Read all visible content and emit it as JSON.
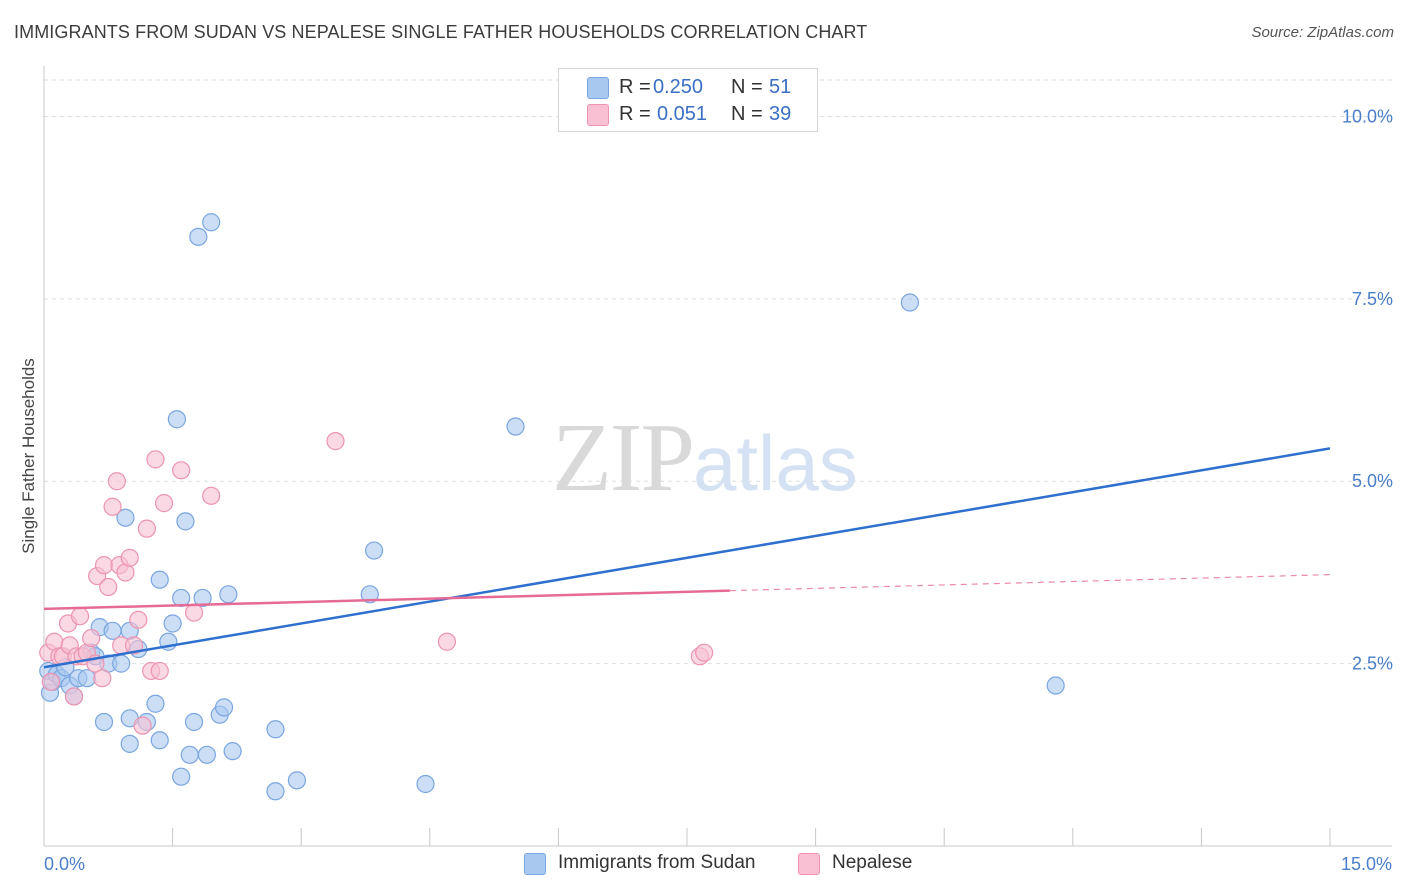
{
  "title": "IMMIGRANTS FROM SUDAN VS NEPALESE SINGLE FATHER HOUSEHOLDS CORRELATION CHART",
  "source": "Source: ZipAtlas.com",
  "watermark": {
    "zip": "ZIP",
    "atlas": "atlas"
  },
  "legend": {
    "rows": [
      {
        "r_label": "R =",
        "r_value": "0.250",
        "n_label": "N =",
        "n_value": "51",
        "color": "#a9c8f0",
        "border": "#7aa6e0"
      },
      {
        "r_label": "R =",
        "r_value": "0.051",
        "n_label": "N =",
        "n_value": "39",
        "color": "#f8c0d2",
        "border": "#ec94b0"
      }
    ]
  },
  "bottom_legend": [
    {
      "label": "Immigrants from Sudan",
      "color": "#a9c8f0",
      "border": "#7aa6e0"
    },
    {
      "label": "Nepalese",
      "color": "#f8c0d2",
      "border": "#ec94b0"
    }
  ],
  "chart_data": {
    "type": "scatter",
    "title": "IMMIGRANTS FROM SUDAN VS NEPALESE SINGLE FATHER HOUSEHOLDS CORRELATION CHART",
    "xlabel": "",
    "ylabel": "Single Father Households",
    "xlim": [
      0,
      15
    ],
    "ylim": [
      0,
      10.5
    ],
    "x_tick_labels": [
      {
        "value": 0,
        "label": "0.0%"
      },
      {
        "value": 15,
        "label": "15.0%"
      }
    ],
    "y_tick_labels": [
      {
        "value": 2.5,
        "label": "2.5%"
      },
      {
        "value": 5.0,
        "label": "5.0%"
      },
      {
        "value": 7.5,
        "label": "7.5%"
      },
      {
        "value": 10.0,
        "label": "10.0%"
      }
    ],
    "grid": true,
    "series": [
      {
        "name": "Immigrants from Sudan",
        "color": "#a9c8f0",
        "stroke": "#7aa6e0",
        "trend_color": "#2f6fce",
        "trend": {
          "x": [
            0,
            15
          ],
          "y": [
            2.45,
            5.45
          ]
        },
        "points": [
          [
            0.05,
            2.4
          ],
          [
            0.07,
            2.1
          ],
          [
            0.1,
            2.25
          ],
          [
            0.15,
            2.35
          ],
          [
            0.2,
            2.3
          ],
          [
            0.25,
            2.45
          ],
          [
            0.3,
            2.2
          ],
          [
            0.35,
            2.05
          ],
          [
            0.4,
            2.3
          ],
          [
            0.5,
            2.3
          ],
          [
            0.55,
            2.65
          ],
          [
            0.6,
            2.6
          ],
          [
            0.65,
            3.0
          ],
          [
            0.75,
            2.5
          ],
          [
            0.8,
            2.95
          ],
          [
            0.9,
            2.5
          ],
          [
            0.95,
            4.5
          ],
          [
            1.0,
            2.95
          ],
          [
            1.1,
            2.7
          ],
          [
            1.2,
            1.7
          ],
          [
            1.3,
            1.95
          ],
          [
            1.35,
            3.65
          ],
          [
            1.45,
            2.8
          ],
          [
            1.5,
            3.05
          ],
          [
            1.55,
            5.85
          ],
          [
            1.6,
            3.4
          ],
          [
            1.65,
            4.45
          ],
          [
            1.7,
            1.25
          ],
          [
            1.75,
            1.7
          ],
          [
            1.8,
            8.35
          ],
          [
            1.85,
            3.4
          ],
          [
            1.9,
            1.25
          ],
          [
            1.95,
            8.55
          ],
          [
            2.05,
            1.8
          ],
          [
            2.1,
            1.9
          ],
          [
            2.15,
            3.45
          ],
          [
            2.2,
            1.3
          ],
          [
            1.0,
            1.75
          ],
          [
            0.7,
            1.7
          ],
          [
            1.0,
            1.4
          ],
          [
            1.35,
            1.45
          ],
          [
            1.6,
            0.95
          ],
          [
            2.7,
            1.6
          ],
          [
            2.7,
            0.75
          ],
          [
            2.95,
            0.9
          ],
          [
            3.8,
            3.45
          ],
          [
            3.85,
            4.05
          ],
          [
            4.45,
            0.85
          ],
          [
            5.5,
            5.75
          ],
          [
            10.1,
            7.45
          ],
          [
            11.8,
            2.2
          ]
        ]
      },
      {
        "name": "Nepalese",
        "color": "#f8c0d2",
        "stroke": "#ec94b0",
        "trend_color": "#e56b96",
        "trend": {
          "x": [
            0,
            8.0
          ],
          "y": [
            3.25,
            3.5
          ]
        },
        "trend_ext": {
          "x": [
            8.0,
            15
          ],
          "y": [
            3.5,
            3.72
          ]
        },
        "points": [
          [
            0.05,
            2.65
          ],
          [
            0.08,
            2.25
          ],
          [
            0.12,
            2.8
          ],
          [
            0.18,
            2.6
          ],
          [
            0.22,
            2.6
          ],
          [
            0.28,
            3.05
          ],
          [
            0.3,
            2.75
          ],
          [
            0.35,
            2.05
          ],
          [
            0.38,
            2.6
          ],
          [
            0.42,
            3.15
          ],
          [
            0.45,
            2.6
          ],
          [
            0.5,
            2.65
          ],
          [
            0.55,
            2.85
          ],
          [
            0.6,
            2.5
          ],
          [
            0.62,
            3.7
          ],
          [
            0.68,
            2.3
          ],
          [
            0.7,
            3.85
          ],
          [
            0.75,
            3.55
          ],
          [
            0.8,
            4.65
          ],
          [
            0.85,
            5.0
          ],
          [
            0.88,
            3.85
          ],
          [
            0.9,
            2.75
          ],
          [
            0.95,
            3.75
          ],
          [
            1.0,
            3.95
          ],
          [
            1.05,
            2.75
          ],
          [
            1.1,
            3.1
          ],
          [
            1.15,
            1.65
          ],
          [
            1.2,
            4.35
          ],
          [
            1.25,
            2.4
          ],
          [
            1.3,
            5.3
          ],
          [
            1.35,
            2.4
          ],
          [
            1.4,
            4.7
          ],
          [
            1.6,
            5.15
          ],
          [
            1.75,
            3.2
          ],
          [
            1.95,
            4.8
          ],
          [
            3.4,
            5.55
          ],
          [
            4.7,
            2.8
          ],
          [
            7.65,
            2.6
          ],
          [
            7.7,
            2.65
          ]
        ]
      }
    ]
  }
}
